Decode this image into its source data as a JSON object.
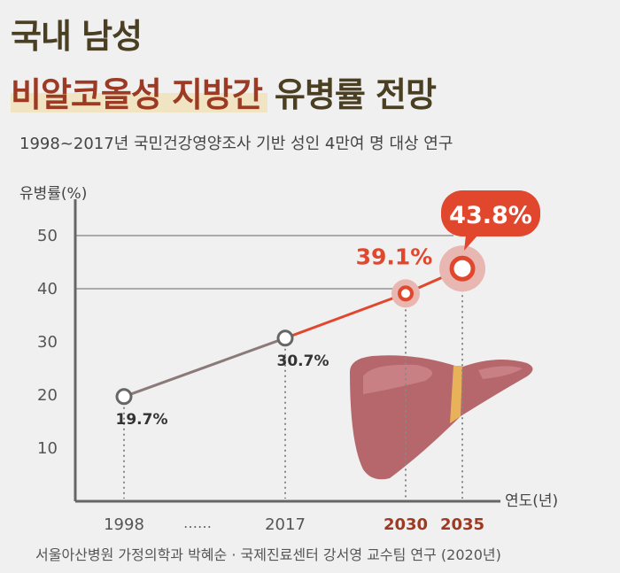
{
  "header": {
    "title_line1": "국내 남성",
    "title_highlight": "비알코올성 지방간",
    "title_rest": "유병률 전망",
    "subtitle": "1998~2017년 국민건강영양조사 기반 성인 4만여 명 대상 연구"
  },
  "source": "서울아산병원 가정의학과 박혜순 · 국제진료센터 강서영 교수팀 연구 (2020년)",
  "chart_data": {
    "type": "line",
    "ylabel": "유병률(%)",
    "xlabel": "연도(년)",
    "ylim": [
      0,
      55
    ],
    "yticks": [
      10,
      20,
      30,
      40,
      50
    ],
    "x_gap_marker": "……",
    "categories": [
      "1998",
      "2017",
      "2030",
      "2035"
    ],
    "values": [
      19.7,
      30.7,
      39.1,
      43.8
    ],
    "labels": [
      "19.7%",
      "30.7%",
      "39.1%",
      "43.8%"
    ],
    "projected": [
      false,
      false,
      true,
      true
    ],
    "colors": {
      "observed": "#8a8a8a",
      "projected": "#e0472d",
      "projected_year": "#9c3a24",
      "axis": "#666666"
    }
  }
}
